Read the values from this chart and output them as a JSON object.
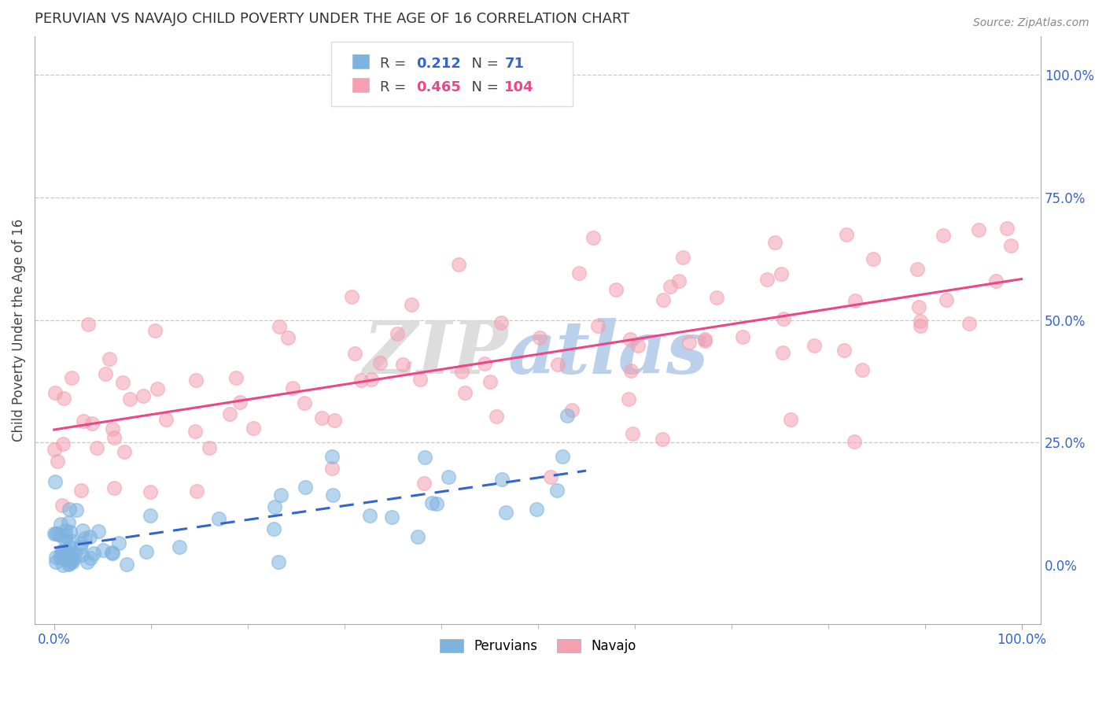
{
  "title": "PERUVIAN VS NAVAJO CHILD POVERTY UNDER THE AGE OF 16 CORRELATION CHART",
  "source": "Source: ZipAtlas.com",
  "ylabel": "Child Poverty Under the Age of 16",
  "xlim": [
    -0.02,
    1.02
  ],
  "ylim": [
    -0.12,
    1.08
  ],
  "peruvian_color": "#7EB3E0",
  "navajo_color": "#F4A0B0",
  "peruvian_line_color": "#3366CC",
  "navajo_line_color": "#EE4488",
  "peruvian_R": 0.212,
  "peruvian_N": 71,
  "navajo_R": 0.465,
  "navajo_N": 104,
  "watermark_zip": "ZIP",
  "watermark_atlas": "atlas",
  "background_color": "#ffffff",
  "grid_color": "#c8c8c8",
  "title_fontsize": 13,
  "axis_tick_color": "#3366CC",
  "right_yticks": [
    0.0,
    0.25,
    0.5,
    0.75,
    1.0
  ],
  "right_yticklabels": [
    "0.0%",
    "25.0%",
    "50.0%",
    "75.0%",
    "100.0%"
  ]
}
